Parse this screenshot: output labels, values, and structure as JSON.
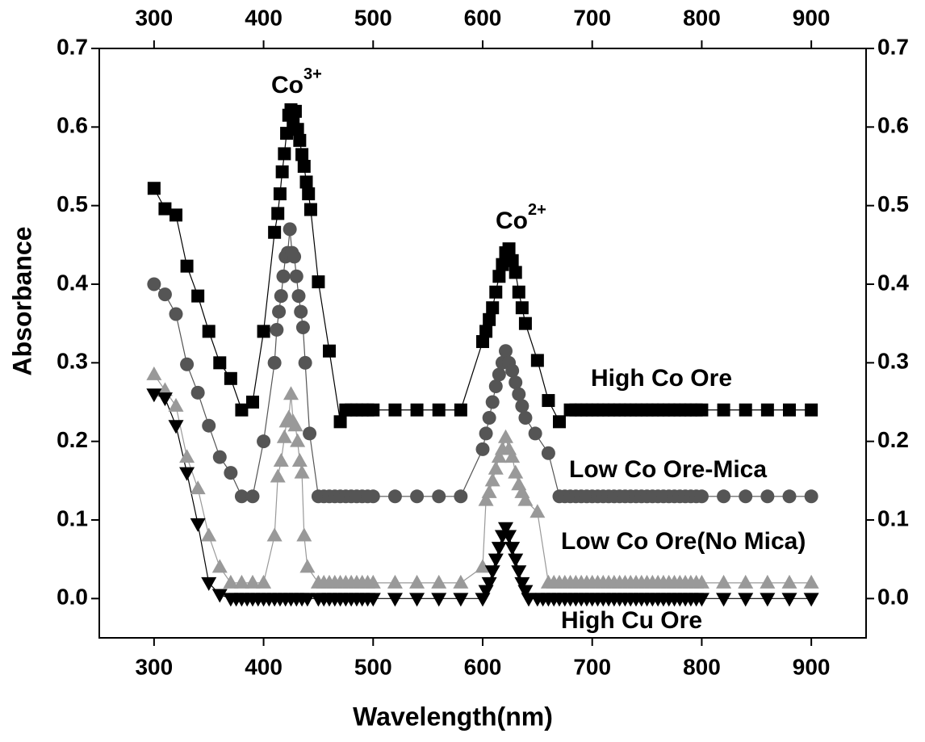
{
  "chart_data": {
    "type": "scatter",
    "xlabel": "Wavelength(nm)",
    "ylabel": "Absorbance",
    "xlim": [
      250,
      950
    ],
    "ylim": [
      -0.05,
      0.7
    ],
    "xticks": [
      300,
      400,
      500,
      600,
      700,
      800,
      900
    ],
    "yticks": [
      {
        "value": 0,
        "label": "0.0"
      },
      0.1,
      0.2,
      0.3,
      0.4,
      0.5,
      0.6,
      0.7
    ],
    "annotations": [
      {
        "text": "Co",
        "sup": "3+"
      },
      {
        "text": "Co",
        "sup": "2+"
      }
    ],
    "series": [
      {
        "name": "High Co Ore",
        "color": "#000000",
        "marker": "square",
        "x": [
          300,
          310,
          320,
          330,
          340,
          350,
          360,
          370,
          380,
          390,
          400,
          410,
          413,
          415,
          417,
          419,
          421,
          423,
          425,
          427,
          429,
          431,
          433,
          435,
          437,
          439,
          441,
          443,
          450,
          460,
          470,
          475,
          480,
          485,
          490,
          495,
          500,
          520,
          540,
          560,
          580,
          600,
          603,
          606,
          609,
          612,
          615,
          618,
          621,
          624,
          627,
          630,
          633,
          636,
          639,
          650,
          660,
          670,
          680,
          685,
          690,
          695,
          700,
          705,
          710,
          715,
          720,
          725,
          730,
          735,
          740,
          745,
          750,
          755,
          760,
          765,
          770,
          775,
          780,
          785,
          790,
          795,
          800,
          820,
          840,
          860,
          880,
          900
        ],
        "values": [
          0.522,
          0.496,
          0.488,
          0.423,
          0.385,
          0.34,
          0.3,
          0.28,
          0.24,
          0.25,
          0.34,
          0.466,
          0.49,
          0.515,
          0.543,
          0.566,
          0.592,
          0.615,
          0.622,
          0.605,
          0.62,
          0.597,
          0.583,
          0.565,
          0.55,
          0.53,
          0.515,
          0.495,
          0.403,
          0.315,
          0.225,
          0.24,
          0.24,
          0.24,
          0.24,
          0.24,
          0.24,
          0.24,
          0.24,
          0.24,
          0.24,
          0.327,
          0.34,
          0.355,
          0.37,
          0.39,
          0.41,
          0.425,
          0.44,
          0.445,
          0.43,
          0.415,
          0.39,
          0.37,
          0.35,
          0.303,
          0.252,
          0.225,
          0.24,
          0.24,
          0.24,
          0.24,
          0.24,
          0.24,
          0.24,
          0.24,
          0.24,
          0.24,
          0.24,
          0.24,
          0.24,
          0.24,
          0.24,
          0.24,
          0.24,
          0.24,
          0.24,
          0.24,
          0.24,
          0.24,
          0.24,
          0.24,
          0.24,
          0.24,
          0.24,
          0.24,
          0.24,
          0.24
        ]
      },
      {
        "name": "Low Co Ore-Mica",
        "color": "#555555",
        "marker": "circle",
        "x": [
          300,
          310,
          320,
          330,
          340,
          350,
          360,
          370,
          380,
          390,
          400,
          410,
          412,
          414,
          416,
          418,
          420,
          422,
          424,
          426,
          428,
          430,
          432,
          434,
          436,
          438,
          442,
          450,
          455,
          460,
          465,
          470,
          475,
          480,
          485,
          490,
          495,
          500,
          520,
          540,
          560,
          580,
          600,
          603,
          606,
          609,
          612,
          615,
          618,
          621,
          624,
          627,
          630,
          633,
          636,
          639,
          648,
          660,
          670,
          675,
          680,
          685,
          690,
          695,
          700,
          705,
          710,
          715,
          720,
          725,
          730,
          735,
          740,
          745,
          750,
          755,
          760,
          765,
          770,
          775,
          780,
          785,
          790,
          795,
          800,
          820,
          840,
          860,
          880,
          900
        ],
        "values": [
          0.4,
          0.387,
          0.362,
          0.298,
          0.262,
          0.22,
          0.18,
          0.16,
          0.13,
          0.13,
          0.2,
          0.3,
          0.342,
          0.365,
          0.385,
          0.41,
          0.435,
          0.44,
          0.47,
          0.44,
          0.435,
          0.41,
          0.385,
          0.365,
          0.345,
          0.3,
          0.21,
          0.13,
          0.13,
          0.13,
          0.13,
          0.13,
          0.13,
          0.13,
          0.13,
          0.13,
          0.13,
          0.13,
          0.13,
          0.13,
          0.13,
          0.13,
          0.19,
          0.21,
          0.23,
          0.25,
          0.27,
          0.285,
          0.3,
          0.315,
          0.3,
          0.29,
          0.275,
          0.26,
          0.245,
          0.23,
          0.21,
          0.185,
          0.13,
          0.13,
          0.13,
          0.13,
          0.13,
          0.13,
          0.13,
          0.13,
          0.13,
          0.13,
          0.13,
          0.13,
          0.13,
          0.13,
          0.13,
          0.13,
          0.13,
          0.13,
          0.13,
          0.13,
          0.13,
          0.13,
          0.13,
          0.13,
          0.13,
          0.13,
          0.13,
          0.13,
          0.13,
          0.13,
          0.13,
          0.13
        ]
      },
      {
        "name": "Low Co Ore(No Mica)",
        "color": "#999999",
        "marker": "triangle",
        "x": [
          300,
          310,
          320,
          330,
          340,
          350,
          360,
          370,
          380,
          390,
          400,
          410,
          413,
          416,
          419,
          421,
          423,
          425,
          427,
          429,
          431,
          433,
          435,
          437,
          440,
          450,
          455,
          460,
          465,
          470,
          475,
          480,
          485,
          490,
          495,
          500,
          520,
          540,
          560,
          580,
          600,
          603,
          606,
          609,
          612,
          615,
          618,
          621,
          624,
          627,
          630,
          633,
          636,
          639,
          650,
          660,
          665,
          670,
          675,
          680,
          685,
          690,
          695,
          700,
          705,
          710,
          715,
          720,
          725,
          730,
          735,
          740,
          745,
          750,
          755,
          760,
          765,
          770,
          775,
          780,
          785,
          790,
          795,
          800,
          820,
          840,
          860,
          880,
          900
        ],
        "values": [
          0.285,
          0.265,
          0.245,
          0.18,
          0.14,
          0.08,
          0.04,
          0.02,
          0.02,
          0.02,
          0.02,
          0.08,
          0.155,
          0.175,
          0.205,
          0.225,
          0.23,
          0.26,
          0.225,
          0.22,
          0.2,
          0.175,
          0.16,
          0.08,
          0.04,
          0.02,
          0.02,
          0.02,
          0.02,
          0.02,
          0.02,
          0.02,
          0.02,
          0.02,
          0.02,
          0.02,
          0.02,
          0.02,
          0.02,
          0.02,
          0.04,
          0.125,
          0.135,
          0.15,
          0.165,
          0.18,
          0.19,
          0.205,
          0.19,
          0.18,
          0.16,
          0.145,
          0.135,
          0.125,
          0.11,
          0.02,
          0.02,
          0.02,
          0.02,
          0.02,
          0.02,
          0.02,
          0.02,
          0.02,
          0.02,
          0.02,
          0.02,
          0.02,
          0.02,
          0.02,
          0.02,
          0.02,
          0.02,
          0.02,
          0.02,
          0.02,
          0.02,
          0.02,
          0.02,
          0.02,
          0.02,
          0.02,
          0.02,
          0.02,
          0.02,
          0.02,
          0.02,
          0.02,
          0.02
        ]
      },
      {
        "name": "High Cu Ore",
        "color": "#000000",
        "marker": "triangle-down",
        "x": [
          300,
          310,
          320,
          330,
          340,
          350,
          360,
          370,
          375,
          380,
          385,
          390,
          395,
          400,
          405,
          410,
          415,
          420,
          425,
          430,
          435,
          440,
          450,
          455,
          460,
          465,
          470,
          475,
          480,
          485,
          490,
          495,
          500,
          520,
          540,
          560,
          580,
          600,
          603,
          606,
          609,
          612,
          615,
          618,
          621,
          624,
          627,
          630,
          633,
          636,
          639,
          642,
          650,
          655,
          660,
          665,
          670,
          675,
          680,
          685,
          690,
          695,
          700,
          705,
          710,
          715,
          720,
          725,
          730,
          735,
          740,
          745,
          750,
          755,
          760,
          765,
          770,
          775,
          780,
          785,
          790,
          795,
          800,
          820,
          840,
          860,
          880,
          900
        ],
        "values": [
          0.26,
          0.255,
          0.22,
          0.16,
          0.095,
          0.02,
          0.005,
          0,
          0,
          0,
          0,
          0,
          0,
          0,
          0,
          0,
          0,
          0,
          0,
          0,
          0,
          0,
          0,
          0,
          0,
          0,
          0,
          0,
          0,
          0,
          0,
          0,
          0,
          0,
          0,
          0,
          0,
          0,
          0.01,
          0.02,
          0.035,
          0.05,
          0.065,
          0.08,
          0.09,
          0.08,
          0.065,
          0.05,
          0.035,
          0.02,
          0.01,
          0,
          0,
          0,
          0,
          0,
          0,
          0,
          0,
          0,
          0,
          0,
          0,
          0,
          0,
          0,
          0,
          0,
          0,
          0,
          0,
          0,
          0,
          0,
          0,
          0,
          0,
          0,
          0,
          0,
          0,
          0,
          0,
          0,
          0,
          0,
          0,
          0
        ]
      }
    ]
  }
}
